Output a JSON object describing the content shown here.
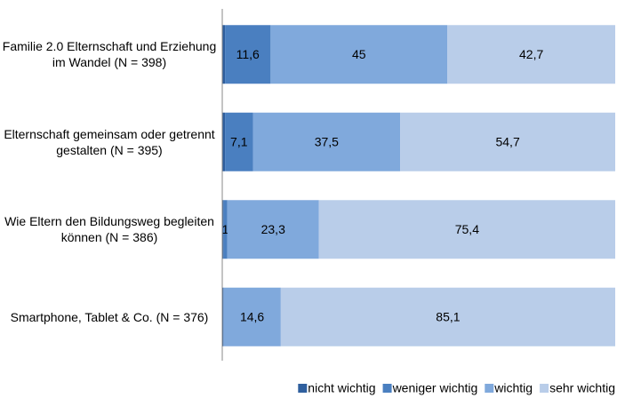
{
  "chart_data": {
    "type": "stacked-bar-horizontal",
    "categories": [
      "Familie 2.0 Elternschaft und Erziehung im Wandel (N = 398)",
      "Elternschaft gemeinsam oder getrennt gestalten (N = 395)",
      "Wie Eltern den Bildungsweg begleiten können (N = 386)",
      "Smartphone, Tablet & Co. (N = 376)"
    ],
    "series": [
      {
        "name": "nicht wichtig",
        "color": "#2f5f9e",
        "values": [
          0.7,
          0.7,
          0.3,
          0.3
        ],
        "value_labels": [
          null,
          null,
          null,
          null
        ]
      },
      {
        "name": "weniger wichtig",
        "color": "#4a7fc0",
        "values": [
          11.6,
          7.1,
          1,
          0
        ],
        "value_labels": [
          "11,6",
          "7,1",
          "1",
          null
        ]
      },
      {
        "name": "wichtig",
        "color": "#80a9dc",
        "values": [
          45,
          37.5,
          23.3,
          14.6
        ],
        "value_labels": [
          "45",
          "37,5",
          "23,3",
          "14,6"
        ]
      },
      {
        "name": "sehr wichtig",
        "color": "#b9cde9",
        "values": [
          42.7,
          54.7,
          75.4,
          85.1
        ],
        "value_labels": [
          "42,7",
          "54,7",
          "75,4",
          "85,1"
        ]
      }
    ],
    "xlim": [
      0,
      100
    ],
    "legend": "bottom"
  }
}
